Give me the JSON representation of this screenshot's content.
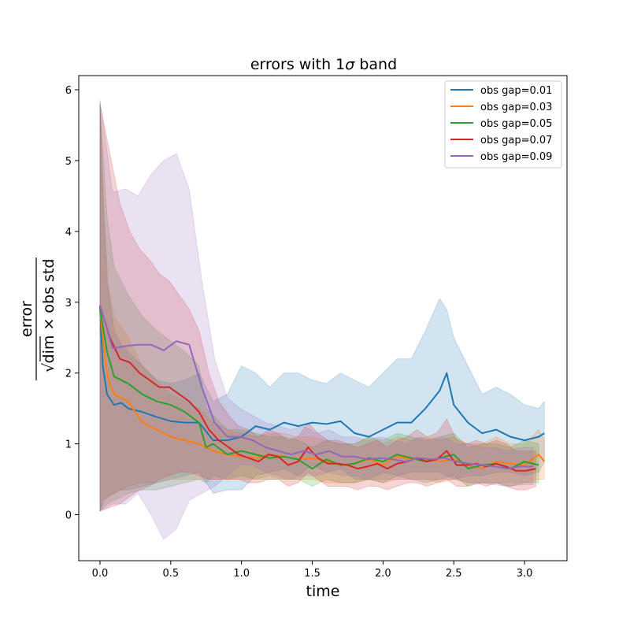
{
  "chart_data": {
    "type": "line",
    "title_main": "errors with 1",
    "title_sigma": "σ",
    "title_tail": " band",
    "xlabel": "time",
    "ylabel_num": "error",
    "ylabel_den": "dim × obs std",
    "ylabel_sqrt": "√",
    "xlim": [
      -0.15,
      3.3
    ],
    "ylim": [
      -0.65,
      6.2
    ],
    "xticks": [
      "0.0",
      "0.5",
      "1.0",
      "1.5",
      "2.0",
      "2.5",
      "3.0"
    ],
    "xtick_values": [
      0,
      0.5,
      1.0,
      1.5,
      2.0,
      2.5,
      3.0
    ],
    "yticks": [
      "0",
      "1",
      "2",
      "3",
      "4",
      "5",
      "6"
    ],
    "ytick_values": [
      0,
      1,
      2,
      3,
      4,
      5,
      6
    ],
    "grid": false,
    "legend_position": "top-right",
    "series": [
      {
        "name": "obs gap=0.01",
        "color": "#1f77b4",
        "x": [
          0.0,
          0.02,
          0.05,
          0.1,
          0.15,
          0.2,
          0.3,
          0.4,
          0.5,
          0.6,
          0.7,
          0.8,
          0.9,
          1.0,
          1.1,
          1.2,
          1.3,
          1.4,
          1.5,
          1.6,
          1.7,
          1.8,
          1.9,
          2.0,
          2.1,
          2.2,
          2.3,
          2.4,
          2.45,
          2.5,
          2.6,
          2.7,
          2.8,
          2.9,
          3.0,
          3.1,
          3.14
        ],
        "y": [
          2.95,
          2.1,
          1.7,
          1.55,
          1.58,
          1.5,
          1.45,
          1.38,
          1.32,
          1.3,
          1.3,
          1.05,
          1.05,
          1.1,
          1.25,
          1.2,
          1.3,
          1.25,
          1.3,
          1.28,
          1.32,
          1.15,
          1.1,
          1.2,
          1.3,
          1.3,
          1.5,
          1.75,
          2.0,
          1.55,
          1.3,
          1.15,
          1.2,
          1.1,
          1.05,
          1.1,
          1.15
        ],
        "upper": [
          5.85,
          4.5,
          3.3,
          2.6,
          2.4,
          2.3,
          2.1,
          1.9,
          1.85,
          1.9,
          2.0,
          1.6,
          1.7,
          2.1,
          2.0,
          1.8,
          2.0,
          2.0,
          1.9,
          1.85,
          2.0,
          1.9,
          1.8,
          2.0,
          2.2,
          2.2,
          2.6,
          3.05,
          2.9,
          2.5,
          2.1,
          1.7,
          1.8,
          1.7,
          1.55,
          1.5,
          1.6
        ],
        "lower": [
          0.05,
          0.2,
          0.25,
          0.3,
          0.35,
          0.35,
          0.4,
          0.45,
          0.5,
          0.55,
          0.6,
          0.3,
          0.35,
          0.35,
          0.55,
          0.6,
          0.65,
          0.55,
          0.7,
          0.6,
          0.65,
          0.5,
          0.5,
          0.6,
          0.55,
          0.6,
          0.6,
          0.6,
          0.55,
          0.5,
          0.55,
          0.55,
          0.6,
          0.6,
          0.55,
          0.6,
          0.75
        ]
      },
      {
        "name": "obs gap=0.03",
        "color": "#ff7f0e",
        "x": [
          0.0,
          0.03,
          0.06,
          0.1,
          0.2,
          0.3,
          0.4,
          0.5,
          0.6,
          0.7,
          0.8,
          0.9,
          1.0,
          1.1,
          1.2,
          1.3,
          1.4,
          1.5,
          1.6,
          1.7,
          1.8,
          1.9,
          2.0,
          2.1,
          2.2,
          2.3,
          2.4,
          2.5,
          2.6,
          2.7,
          2.8,
          2.9,
          3.0,
          3.1,
          3.14
        ],
        "y": [
          2.9,
          2.3,
          1.9,
          1.7,
          1.6,
          1.3,
          1.2,
          1.1,
          1.05,
          1.0,
          0.9,
          0.85,
          0.82,
          0.8,
          0.85,
          0.82,
          0.78,
          0.8,
          0.75,
          0.7,
          0.72,
          0.78,
          0.7,
          0.82,
          0.78,
          0.8,
          0.75,
          0.78,
          0.7,
          0.65,
          0.75,
          0.72,
          0.7,
          0.85,
          0.75
        ],
        "upper": [
          5.8,
          4.2,
          3.2,
          2.8,
          2.5,
          2.1,
          1.9,
          1.7,
          1.6,
          1.5,
          1.3,
          1.2,
          1.15,
          1.1,
          1.15,
          1.15,
          1.1,
          1.1,
          1.05,
          1.0,
          1.0,
          1.1,
          1.0,
          1.1,
          1.05,
          1.1,
          1.05,
          1.1,
          1.0,
          1.0,
          1.1,
          1.0,
          1.0,
          1.2,
          1.05
        ],
        "lower": [
          0.05,
          0.2,
          0.25,
          0.3,
          0.4,
          0.45,
          0.45,
          0.5,
          0.5,
          0.5,
          0.5,
          0.5,
          0.5,
          0.5,
          0.55,
          0.5,
          0.5,
          0.5,
          0.45,
          0.45,
          0.45,
          0.5,
          0.45,
          0.5,
          0.5,
          0.5,
          0.45,
          0.5,
          0.45,
          0.45,
          0.45,
          0.45,
          0.45,
          0.5,
          0.5
        ]
      },
      {
        "name": "obs gap=0.05",
        "color": "#2ca02c",
        "x": [
          0.0,
          0.05,
          0.1,
          0.2,
          0.3,
          0.4,
          0.5,
          0.6,
          0.7,
          0.75,
          0.8,
          0.9,
          1.0,
          1.1,
          1.2,
          1.3,
          1.4,
          1.5,
          1.6,
          1.7,
          1.8,
          1.9,
          2.0,
          2.1,
          2.2,
          2.3,
          2.4,
          2.5,
          2.6,
          2.7,
          2.8,
          2.9,
          3.0,
          3.1
        ],
        "y": [
          2.9,
          2.3,
          1.95,
          1.85,
          1.7,
          1.6,
          1.55,
          1.45,
          1.3,
          0.95,
          1.0,
          0.85,
          0.9,
          0.85,
          0.8,
          0.82,
          0.78,
          0.65,
          0.78,
          0.7,
          0.72,
          0.8,
          0.75,
          0.85,
          0.8,
          0.75,
          0.8,
          0.85,
          0.65,
          0.7,
          0.72,
          0.65,
          0.75,
          0.7
        ],
        "upper": [
          5.8,
          4.2,
          3.5,
          3.1,
          2.8,
          2.6,
          2.45,
          2.3,
          2.1,
          1.5,
          1.4,
          1.2,
          1.2,
          1.15,
          1.1,
          1.1,
          1.05,
          0.95,
          1.05,
          1.0,
          1.0,
          1.1,
          1.05,
          1.15,
          1.1,
          1.05,
          1.1,
          1.15,
          0.95,
          1.0,
          1.0,
          0.95,
          1.05,
          1.0
        ],
        "lower": [
          0.05,
          0.15,
          0.2,
          0.3,
          0.35,
          0.35,
          0.4,
          0.45,
          0.5,
          0.45,
          0.55,
          0.5,
          0.55,
          0.5,
          0.5,
          0.5,
          0.5,
          0.4,
          0.5,
          0.45,
          0.45,
          0.5,
          0.45,
          0.55,
          0.5,
          0.45,
          0.5,
          0.55,
          0.4,
          0.45,
          0.45,
          0.4,
          0.45,
          0.45
        ]
      },
      {
        "name": "obs gap=0.07",
        "color": "#d62728",
        "x": [
          0.0,
          0.07,
          0.14,
          0.21,
          0.28,
          0.35,
          0.42,
          0.49,
          0.56,
          0.63,
          0.7,
          0.77,
          0.84,
          0.91,
          0.98,
          1.05,
          1.12,
          1.19,
          1.26,
          1.33,
          1.4,
          1.47,
          1.54,
          1.61,
          1.68,
          1.75,
          1.82,
          1.89,
          1.96,
          2.03,
          2.1,
          2.17,
          2.24,
          2.31,
          2.38,
          2.45,
          2.52,
          2.59,
          2.66,
          2.73,
          2.8,
          2.87,
          2.94,
          3.01,
          3.08
        ],
        "y": [
          2.95,
          2.5,
          2.2,
          2.15,
          2.0,
          1.9,
          1.8,
          1.8,
          1.7,
          1.6,
          1.45,
          1.2,
          1.05,
          0.95,
          0.85,
          0.8,
          0.75,
          0.85,
          0.82,
          0.7,
          0.75,
          0.95,
          0.8,
          0.72,
          0.72,
          0.7,
          0.65,
          0.68,
          0.72,
          0.65,
          0.72,
          0.75,
          0.8,
          0.75,
          0.78,
          0.9,
          0.7,
          0.7,
          0.72,
          0.68,
          0.72,
          0.68,
          0.62,
          0.62,
          0.65
        ],
        "upper": [
          5.8,
          5.1,
          4.4,
          4.0,
          3.75,
          3.6,
          3.4,
          3.3,
          3.1,
          2.9,
          2.6,
          2.0,
          1.6,
          1.4,
          1.25,
          1.2,
          1.1,
          1.2,
          1.15,
          1.05,
          1.1,
          1.3,
          1.15,
          1.05,
          1.05,
          1.0,
          0.95,
          1.0,
          1.05,
          0.95,
          1.05,
          1.1,
          1.2,
          1.1,
          1.15,
          1.35,
          1.05,
          1.0,
          1.05,
          1.0,
          1.05,
          1.0,
          0.9,
          0.9,
          0.9
        ],
        "lower": [
          0.05,
          0.1,
          0.15,
          0.25,
          0.35,
          0.4,
          0.5,
          0.55,
          0.6,
          0.6,
          0.55,
          0.5,
          0.5,
          0.5,
          0.5,
          0.45,
          0.45,
          0.5,
          0.5,
          0.4,
          0.45,
          0.6,
          0.5,
          0.4,
          0.4,
          0.4,
          0.35,
          0.4,
          0.4,
          0.35,
          0.4,
          0.45,
          0.45,
          0.4,
          0.45,
          0.5,
          0.4,
          0.4,
          0.45,
          0.4,
          0.45,
          0.4,
          0.35,
          0.35,
          0.4
        ]
      },
      {
        "name": "obs gap=0.09",
        "color": "#9467bd",
        "x": [
          0.0,
          0.09,
          0.18,
          0.27,
          0.36,
          0.45,
          0.54,
          0.63,
          0.72,
          0.81,
          0.9,
          0.99,
          1.08,
          1.17,
          1.26,
          1.35,
          1.44,
          1.53,
          1.62,
          1.71,
          1.8,
          1.89,
          1.98,
          2.07,
          2.16,
          2.25,
          2.34,
          2.43,
          2.52,
          2.61,
          2.7,
          2.79,
          2.88,
          2.97,
          3.06
        ],
        "y": [
          2.95,
          2.35,
          2.38,
          2.4,
          2.4,
          2.32,
          2.45,
          2.4,
          1.8,
          1.3,
          1.1,
          1.1,
          1.05,
          0.95,
          0.9,
          0.85,
          0.9,
          0.85,
          0.9,
          0.82,
          0.82,
          0.78,
          0.8,
          0.78,
          0.75,
          0.8,
          0.78,
          0.8,
          0.75,
          0.72,
          0.7,
          0.68,
          0.65,
          0.68,
          0.68
        ],
        "upper": [
          5.85,
          4.55,
          4.6,
          4.5,
          4.8,
          5.0,
          5.1,
          4.6,
          3.3,
          2.2,
          1.65,
          1.5,
          1.4,
          1.3,
          1.25,
          1.2,
          1.25,
          1.15,
          1.2,
          1.1,
          1.1,
          1.05,
          1.1,
          1.05,
          1.0,
          1.1,
          1.05,
          1.1,
          1.0,
          1.0,
          0.95,
          0.95,
          0.9,
          0.95,
          0.95
        ],
        "lower": [
          0.05,
          0.15,
          0.15,
          0.3,
          0.0,
          -0.35,
          -0.2,
          0.2,
          0.3,
          0.4,
          0.55,
          0.7,
          0.7,
          0.6,
          0.55,
          0.5,
          0.55,
          0.55,
          0.6,
          0.55,
          0.55,
          0.5,
          0.5,
          0.5,
          0.5,
          0.5,
          0.5,
          0.5,
          0.5,
          0.45,
          0.45,
          0.42,
          0.4,
          0.42,
          0.42
        ]
      }
    ]
  }
}
